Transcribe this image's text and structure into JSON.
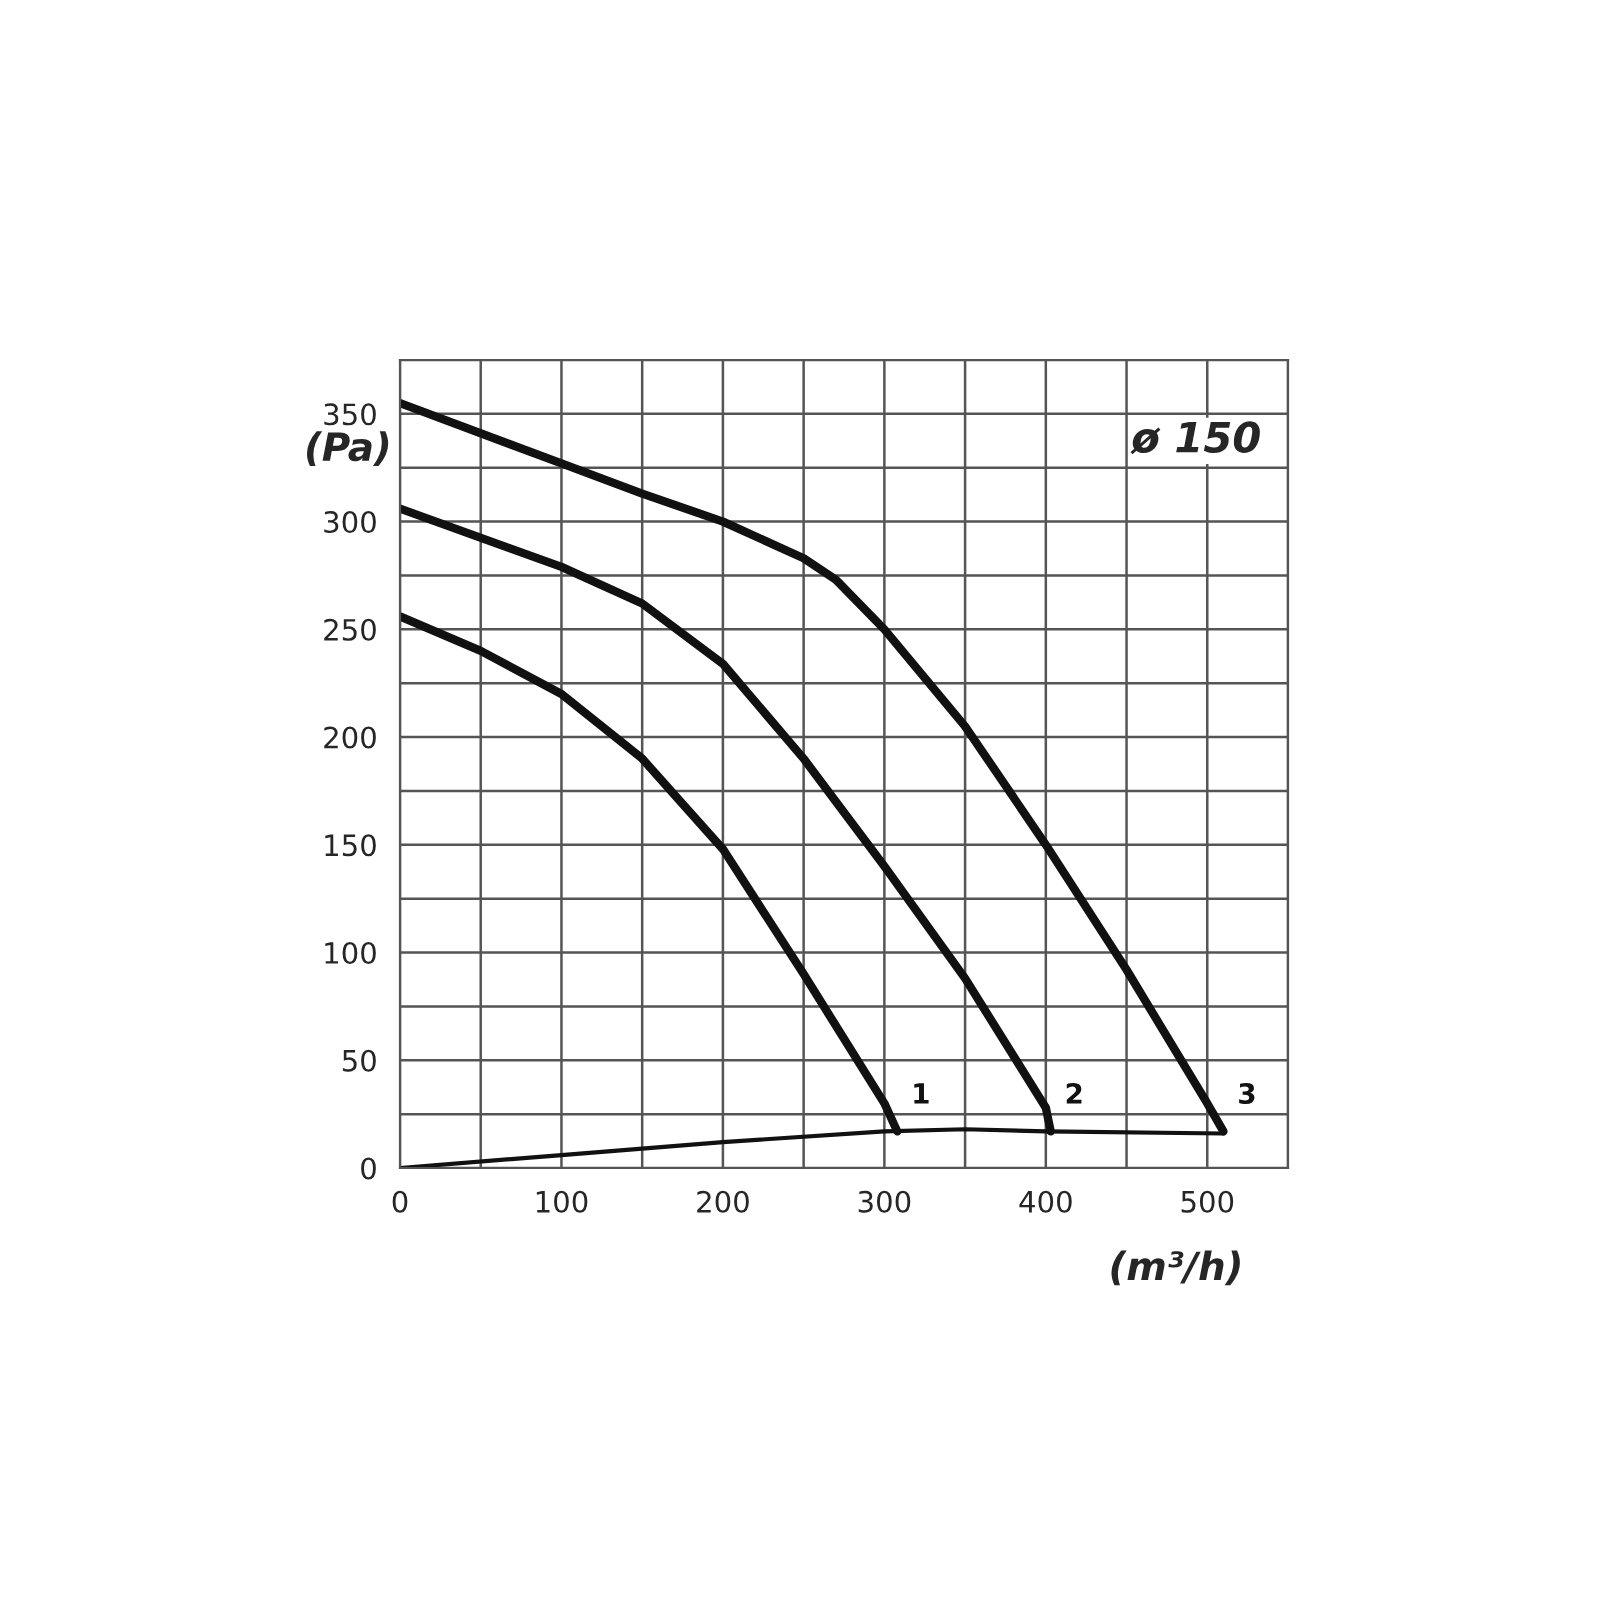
{
  "chart_data": {
    "type": "line",
    "xlabel": "(m³/h)",
    "ylabel": "(Pa)",
    "annotations": [
      "ø 150"
    ],
    "xlim": [
      0,
      550
    ],
    "ylim": [
      0,
      375
    ],
    "xticks": [
      0,
      {
        "value": 50,
        "label": null
      },
      100,
      {
        "value": 150,
        "label": null
      },
      200,
      {
        "value": 250,
        "label": null
      },
      300,
      {
        "value": 350,
        "label": null
      },
      400,
      {
        "value": 450,
        "label": null
      },
      500,
      {
        "value": 550,
        "label": null
      }
    ],
    "yticks": [
      0,
      {
        "value": 25,
        "label": null
      },
      50,
      {
        "value": 75,
        "label": null
      },
      100,
      {
        "value": 125,
        "label": null
      },
      150,
      {
        "value": 175,
        "label": null
      },
      200,
      {
        "value": 225,
        "label": null
      },
      250,
      {
        "value": 275,
        "label": null
      },
      300,
      {
        "value": 325,
        "label": null
      },
      350,
      {
        "value": 375,
        "label": null
      }
    ],
    "grid": true,
    "marker": "none",
    "line_style": "solid",
    "series": [
      {
        "name": "1",
        "color": "#111111",
        "x": [
          0,
          50,
          100,
          150,
          200,
          250,
          300,
          308
        ],
        "values": [
          256,
          240,
          220,
          190,
          148,
          90,
          30,
          17
        ]
      },
      {
        "name": "2",
        "color": "#111111",
        "x": [
          0,
          100,
          150,
          200,
          250,
          300,
          350,
          400,
          403
        ],
        "values": [
          306,
          279,
          262,
          234,
          190,
          140,
          88,
          28,
          17
        ]
      },
      {
        "name": "3",
        "color": "#111111",
        "x": [
          0,
          100,
          150,
          200,
          250,
          270,
          300,
          350,
          400,
          450,
          500,
          510
        ],
        "values": [
          355,
          327,
          313,
          300,
          283,
          273,
          250,
          205,
          150,
          92,
          30,
          17
        ]
      },
      {
        "color": "#111111",
        "x": [
          0,
          100,
          200,
          300,
          350,
          400,
          510
        ],
        "values": [
          0,
          6,
          12,
          17,
          18,
          17,
          16
        ]
      }
    ]
  }
}
